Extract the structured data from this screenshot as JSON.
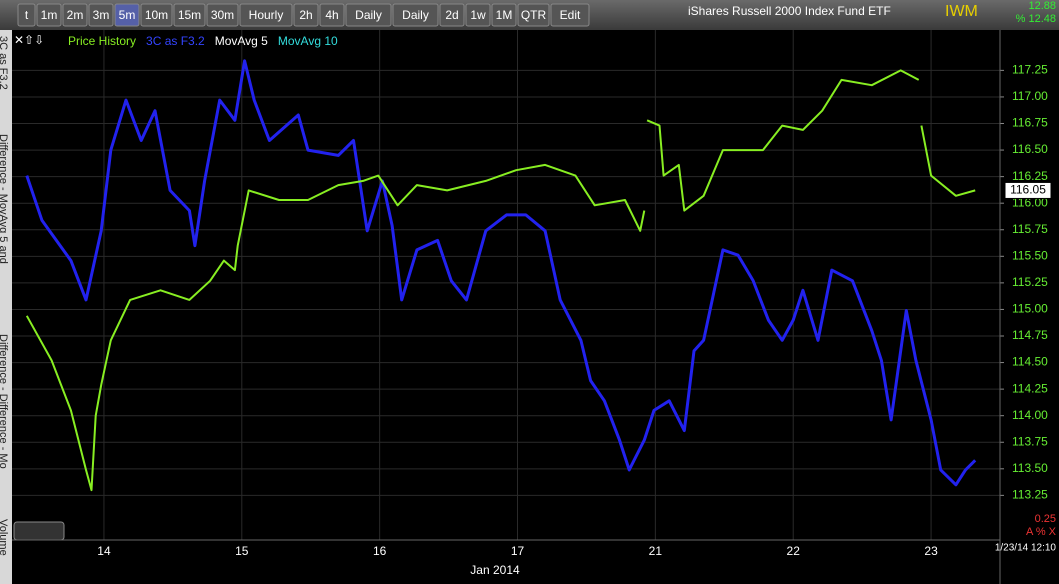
{
  "toolbar": {
    "buttons": [
      "t",
      "1m",
      "2m",
      "3m",
      "5m",
      "10m",
      "15m",
      "30m",
      "Hourly",
      "2h",
      "4h",
      "Daily",
      "Daily",
      "2d",
      "1w",
      "1M",
      "QTR",
      "Edit"
    ],
    "active": "5m",
    "title": "iShares Russell 2000 Index Fund ETF",
    "symbol": "IWM",
    "quote_top": "12.88",
    "quote_bottom": "% 12.48"
  },
  "side_tabs": [
    "3C as F3.2",
    "Difference - MovAvg 5 and",
    "Difference - Difference - Mo",
    "Volume"
  ],
  "footer": {
    "scale_value": "0.25",
    "controls": "A % X",
    "timestamp": "1/23/14 12:10"
  },
  "chart_data": {
    "type": "line",
    "legend_extra": [
      {
        "name": "MovAvg 5",
        "color": "#ffffff"
      },
      {
        "name": "MovAvg 10",
        "color": "#33dddd"
      }
    ],
    "x_label": "Jan 2014",
    "last_price": "116.05",
    "xlim": [
      -0.667,
      6.5
    ],
    "xticks": [
      {
        "value": 0,
        "label": "14"
      },
      {
        "value": 1,
        "label": "15"
      },
      {
        "value": 2,
        "label": "16"
      },
      {
        "value": 3,
        "label": "17"
      },
      {
        "value": 4,
        "label": "21"
      },
      {
        "value": 5,
        "label": "22"
      },
      {
        "value": 6,
        "label": "23"
      }
    ],
    "ylim": [
      112.83,
      117.63
    ],
    "yticks": [
      113.25,
      {
        "value": 113.5,
        "label": "113.50"
      },
      113.75,
      {
        "value": 114,
        "label": "114.00"
      },
      114.25,
      {
        "value": 114.5,
        "label": "114.50"
      },
      114.75,
      {
        "value": 115,
        "label": "115.00"
      },
      115.25,
      {
        "value": 115.5,
        "label": "115.50"
      },
      115.75,
      {
        "value": 116,
        "label": "116.00"
      },
      116.25,
      {
        "value": 116.5,
        "label": "116.50"
      },
      116.75,
      {
        "value": 117,
        "label": "117.00"
      },
      117.25
    ],
    "grid": true,
    "series": [
      {
        "name": "Price History",
        "color": "#88ee22",
        "x": [
          -0.56,
          -0.38,
          -0.24,
          -0.13,
          -0.09,
          -0.06,
          -0.02,
          0.05,
          0.19,
          0.41,
          0.62,
          0.77,
          0.87,
          0.95,
          0.97,
          1.05,
          1.27,
          1.48,
          1.7,
          1.88,
          1.99,
          2.13,
          2.27,
          2.49,
          2.77,
          2.99,
          3.2,
          3.42,
          3.56,
          3.78,
          3.89,
          3.92,
          3.93,
          3.94,
          4.03,
          4.06,
          4.17,
          4.21,
          4.35,
          4.49,
          4.78,
          4.92,
          5.07,
          5.21,
          5.35,
          5.57,
          5.78,
          5.91,
          5.92,
          5.93,
          6.0,
          6.18,
          6.32
        ],
        "values": [
          114.94,
          114.52,
          114.05,
          113.49,
          113.3,
          114.0,
          114.29,
          114.71,
          115.09,
          115.18,
          115.09,
          115.27,
          115.46,
          115.37,
          115.6,
          116.12,
          116.03,
          116.03,
          116.17,
          116.21,
          116.26,
          115.98,
          116.17,
          116.12,
          116.21,
          116.31,
          116.36,
          116.26,
          115.98,
          116.03,
          115.74,
          115.93,
          null,
          116.78,
          116.73,
          116.26,
          116.36,
          115.93,
          116.07,
          116.5,
          116.5,
          116.73,
          116.69,
          116.87,
          117.16,
          117.11,
          117.25,
          117.16,
          null,
          116.73,
          116.26,
          116.07,
          116.12
        ]
      },
      {
        "name": "3C as F3.2",
        "color": "#2222ee",
        "x": [
          -0.56,
          -0.45,
          -0.24,
          -0.13,
          -0.02,
          0.05,
          0.16,
          0.27,
          0.37,
          0.48,
          0.62,
          0.66,
          0.73,
          0.84,
          0.95,
          1.02,
          1.09,
          1.2,
          1.41,
          1.48,
          1.7,
          1.81,
          1.91,
          2.02,
          2.09,
          2.16,
          2.27,
          2.42,
          2.52,
          2.63,
          2.77,
          2.92,
          3.06,
          3.2,
          3.31,
          3.46,
          3.53,
          3.63,
          3.74,
          3.81,
          3.92,
          3.99,
          4.1,
          4.21,
          4.28,
          4.35,
          4.49,
          4.6,
          4.71,
          4.82,
          4.92,
          5.0,
          5.07,
          5.18,
          5.28,
          5.43,
          5.57,
          5.64,
          5.71,
          5.82,
          5.89,
          6.0,
          6.07,
          6.18,
          6.25,
          6.32
        ],
        "values": [
          116.26,
          115.84,
          115.46,
          115.09,
          115.74,
          116.5,
          116.97,
          116.59,
          116.87,
          116.12,
          115.93,
          115.6,
          116.21,
          116.97,
          116.78,
          117.34,
          116.97,
          116.59,
          116.83,
          116.5,
          116.45,
          116.59,
          115.74,
          116.21,
          115.79,
          115.09,
          115.56,
          115.65,
          115.27,
          115.09,
          115.74,
          115.89,
          115.89,
          115.74,
          115.09,
          114.71,
          114.33,
          114.14,
          113.77,
          113.49,
          113.77,
          114.05,
          114.14,
          113.86,
          114.61,
          114.71,
          115.56,
          115.51,
          115.27,
          114.9,
          114.71,
          114.9,
          115.18,
          114.71,
          115.37,
          115.27,
          114.8,
          114.52,
          113.96,
          114.99,
          114.52,
          113.96,
          113.49,
          113.35,
          113.49,
          113.58
        ]
      }
    ]
  }
}
